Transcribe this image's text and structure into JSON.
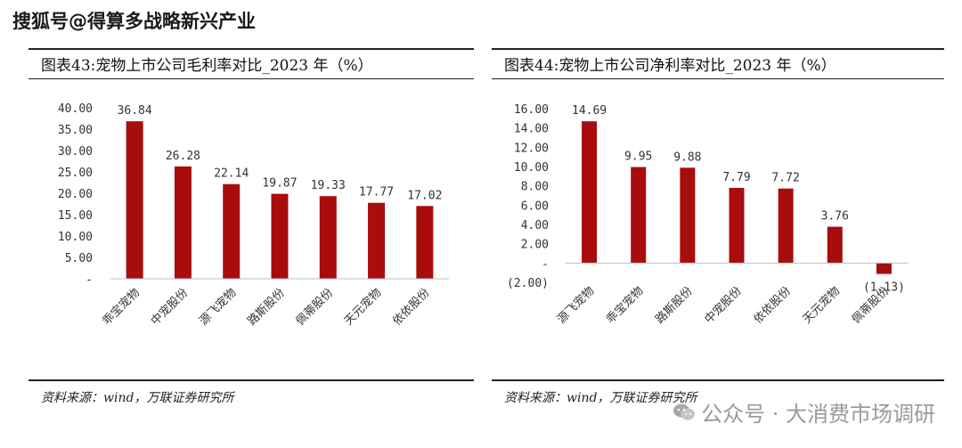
{
  "header": {
    "watermark": "搜狐号@得算多战略新兴产业"
  },
  "footer": {
    "watermark": "公众号 · 大消费市场调研",
    "icon": "wechat-icon"
  },
  "colors": {
    "bar": "#a80c0c",
    "axis": "#bfbfbf",
    "text": "#333333"
  },
  "charts": [
    {
      "title": "图表43:宠物上市公司毛利率对比_2023 年（%）",
      "source": "资料来源：wind，万联证券研究所",
      "chart_data": {
        "type": "bar",
        "title": "图表43:宠物上市公司毛利率对比_2023 年（%）",
        "categories": [
          "乖宝宠物",
          "中宠股份",
          "源飞宠物",
          "路斯股份",
          "佩蒂股份",
          "天元宠物",
          "依依股份"
        ],
        "values": [
          36.84,
          26.28,
          22.14,
          19.87,
          19.33,
          17.77,
          17.02
        ],
        "value_labels": [
          "36.84",
          "26.28",
          "22.14",
          "19.87",
          "19.33",
          "17.77",
          "17.02"
        ],
        "yticks": [
          0,
          5,
          10,
          15,
          20,
          25,
          30,
          35,
          40
        ],
        "ytick_labels": [
          "-",
          "5.00",
          "10.00",
          "15.00",
          "20.00",
          "25.00",
          "30.00",
          "35.00",
          "40.00"
        ],
        "ylim": [
          0,
          40
        ],
        "xlabel": "",
        "ylabel": "",
        "grid": false,
        "legend": "none"
      }
    },
    {
      "title": "图表44:宠物上市公司净利率对比_2023 年（%）",
      "source": "资料来源：wind，万联证券研究所",
      "chart_data": {
        "type": "bar",
        "title": "图表44:宠物上市公司净利率对比_2023 年（%）",
        "categories": [
          "源飞宠物",
          "乖宝宠物",
          "路斯股份",
          "中宠股份",
          "依依股份",
          "天元宠物",
          "佩蒂股份"
        ],
        "values": [
          14.69,
          9.95,
          9.88,
          7.79,
          7.72,
          3.76,
          -1.13
        ],
        "value_labels": [
          "14.69",
          "9.95",
          "9.88",
          "7.79",
          "7.72",
          "3.76",
          "(1.13)"
        ],
        "yticks": [
          -2,
          0,
          2,
          4,
          6,
          8,
          10,
          12,
          14,
          16
        ],
        "ytick_labels": [
          "(2.00)",
          "-",
          "2.00",
          "4.00",
          "6.00",
          "8.00",
          "10.00",
          "12.00",
          "14.00",
          "16.00"
        ],
        "ylim": [
          -2,
          16
        ],
        "xlabel": "",
        "ylabel": "",
        "grid": false,
        "legend": "none"
      }
    }
  ]
}
